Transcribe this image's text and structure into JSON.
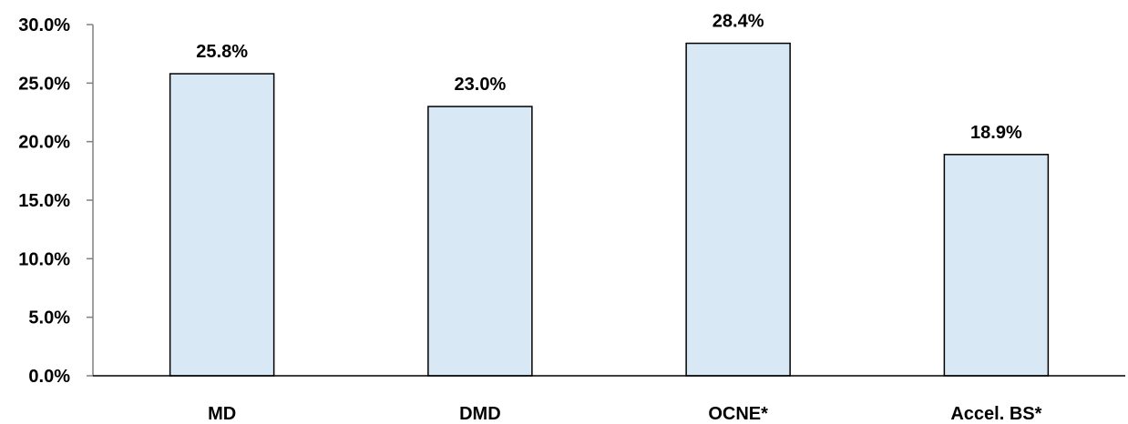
{
  "chart_data": {
    "type": "bar",
    "title": "",
    "xlabel": "",
    "ylabel": "",
    "categories": [
      "MD",
      "DMD",
      "OCNE*",
      "Accel. BS*"
    ],
    "values": [
      25.8,
      23.0,
      28.4,
      18.9
    ],
    "value_labels": [
      "25.8%",
      "23.0%",
      "28.4%",
      "18.9%"
    ],
    "ylim": [
      0,
      30
    ],
    "yticks": [
      0,
      5,
      10,
      15,
      20,
      25,
      30
    ],
    "ytick_labels": [
      "0.0%",
      "5.0%",
      "10.0%",
      "15.0%",
      "20.0%",
      "25.0%",
      "30.0%"
    ],
    "grid": false,
    "legend": "none",
    "bar_color": "#D9E8F5",
    "bar_edge_color": "#000000"
  }
}
